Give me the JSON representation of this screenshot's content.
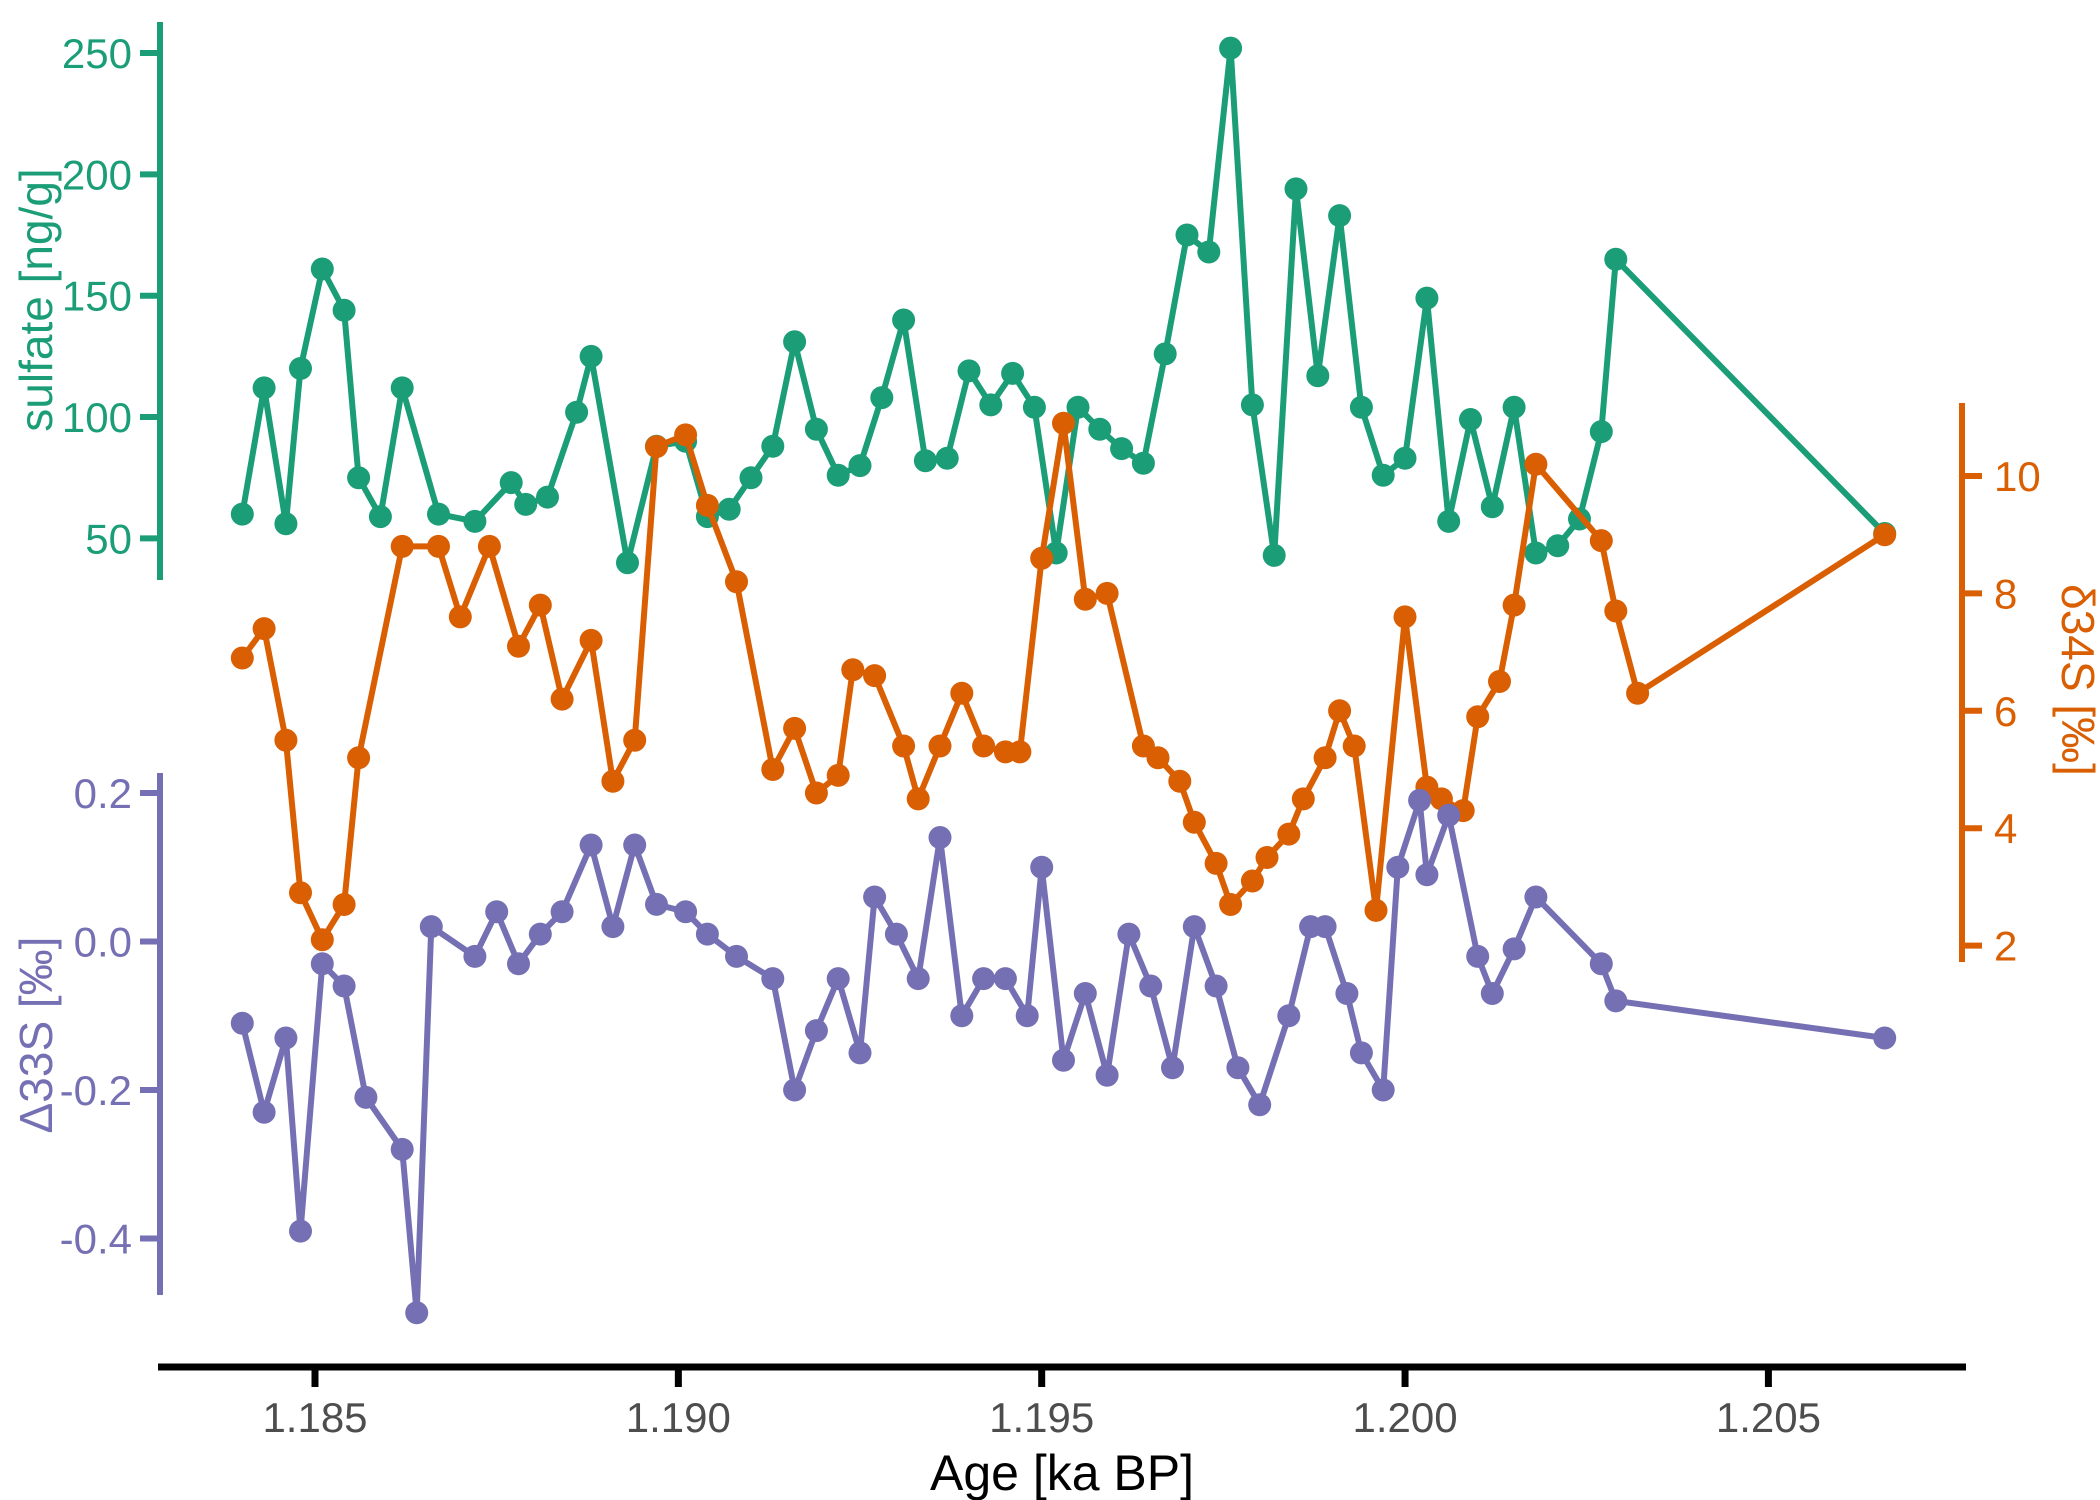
{
  "chart_data": {
    "type": "line",
    "title": "",
    "xlabel": "Age [ka BP]",
    "x_ticks": [
      1.185,
      1.19,
      1.195,
      1.2,
      1.205
    ],
    "x_tick_labels": [
      "1.185",
      "1.190",
      "1.195",
      "1.200",
      "1.205"
    ],
    "xlim": [
      1.1828,
      1.2078
    ],
    "grid": false,
    "legend": "none",
    "axes": [
      {
        "id": "sulfate",
        "side": "left-top",
        "label": "sulfate [ng/g]",
        "color": "#1b9e77",
        "ticks": [
          250,
          200,
          150,
          100,
          50
        ],
        "tick_labels": [
          "250",
          "200",
          "150",
          "100",
          "50"
        ],
        "range_px_note": "top left axis"
      },
      {
        "id": "d34s",
        "side": "right",
        "label": "δ34S [‰]",
        "color": "#d95f02",
        "ticks": [
          10,
          8,
          6,
          4,
          2
        ],
        "tick_labels": [
          "10",
          "8",
          "6",
          "4",
          "2"
        ]
      },
      {
        "id": "d33s",
        "side": "left-bottom",
        "label": "Δ33S [‰]",
        "color": "#7570b3",
        "ticks": [
          0.2,
          0.0,
          -0.2,
          -0.4
        ],
        "tick_labels": [
          "0.2",
          "0.0",
          "-0.2",
          "-0.4"
        ]
      }
    ],
    "series": [
      {
        "name": "sulfate",
        "axis": "sulfate",
        "color": "#1b9e77",
        "points": [
          [
            1.184,
            60
          ],
          [
            1.1843,
            112
          ],
          [
            1.1846,
            56
          ],
          [
            1.1848,
            120
          ],
          [
            1.1851,
            161
          ],
          [
            1.1854,
            144
          ],
          [
            1.1856,
            75
          ],
          [
            1.1859,
            59
          ],
          [
            1.1862,
            112
          ],
          [
            1.1867,
            60
          ],
          [
            1.1872,
            57
          ],
          [
            1.1877,
            73
          ],
          [
            1.1879,
            64
          ],
          [
            1.1882,
            67
          ],
          [
            1.1886,
            102
          ],
          [
            1.1888,
            125
          ],
          [
            1.1893,
            40
          ],
          [
            1.1897,
            88
          ],
          [
            1.1901,
            90
          ],
          [
            1.1904,
            59
          ],
          [
            1.1907,
            62
          ],
          [
            1.191,
            75
          ],
          [
            1.1913,
            88
          ],
          [
            1.1916,
            131
          ],
          [
            1.1919,
            95
          ],
          [
            1.1922,
            76
          ],
          [
            1.1925,
            80
          ],
          [
            1.1928,
            108
          ],
          [
            1.1931,
            140
          ],
          [
            1.1934,
            82
          ],
          [
            1.1937,
            83
          ],
          [
            1.194,
            119
          ],
          [
            1.1943,
            105
          ],
          [
            1.1946,
            118
          ],
          [
            1.1949,
            104
          ],
          [
            1.1952,
            44
          ],
          [
            1.1955,
            104
          ],
          [
            1.1958,
            95
          ],
          [
            1.1961,
            87
          ],
          [
            1.1964,
            81
          ],
          [
            1.1967,
            126
          ],
          [
            1.197,
            175
          ],
          [
            1.1973,
            168
          ],
          [
            1.1976,
            252
          ],
          [
            1.1979,
            105
          ],
          [
            1.1982,
            43
          ],
          [
            1.1985,
            194
          ],
          [
            1.1988,
            117
          ],
          [
            1.1991,
            183
          ],
          [
            1.1994,
            104
          ],
          [
            1.1997,
            76
          ],
          [
            1.2,
            83
          ],
          [
            1.2003,
            149
          ],
          [
            1.2006,
            57
          ],
          [
            1.2009,
            99
          ],
          [
            1.2012,
            63
          ],
          [
            1.2015,
            104
          ],
          [
            1.2018,
            44
          ],
          [
            1.2021,
            47
          ],
          [
            1.2024,
            58
          ],
          [
            1.2027,
            94
          ],
          [
            1.2029,
            165
          ],
          [
            1.2066,
            52
          ]
        ]
      },
      {
        "name": "d34S",
        "axis": "d34s",
        "color": "#d95f02",
        "points": [
          [
            1.184,
            6.9
          ],
          [
            1.1843,
            7.4
          ],
          [
            1.1846,
            5.5
          ],
          [
            1.1848,
            2.9
          ],
          [
            1.1851,
            2.1
          ],
          [
            1.1854,
            2.7
          ],
          [
            1.1856,
            5.2
          ],
          [
            1.1862,
            8.8
          ],
          [
            1.1867,
            8.8
          ],
          [
            1.187,
            7.6
          ],
          [
            1.1874,
            8.8
          ],
          [
            1.1878,
            7.1
          ],
          [
            1.1881,
            7.8
          ],
          [
            1.1884,
            6.2
          ],
          [
            1.1888,
            7.2
          ],
          [
            1.1891,
            4.8
          ],
          [
            1.1894,
            5.5
          ],
          [
            1.1897,
            10.5
          ],
          [
            1.1901,
            10.7
          ],
          [
            1.1904,
            9.5
          ],
          [
            1.1908,
            8.2
          ],
          [
            1.1913,
            5.0
          ],
          [
            1.1916,
            5.7
          ],
          [
            1.1919,
            4.6
          ],
          [
            1.1922,
            4.9
          ],
          [
            1.1924,
            6.7
          ],
          [
            1.1927,
            6.6
          ],
          [
            1.1931,
            5.4
          ],
          [
            1.1933,
            4.5
          ],
          [
            1.1936,
            5.4
          ],
          [
            1.1939,
            6.3
          ],
          [
            1.1942,
            5.4
          ],
          [
            1.1945,
            5.3
          ],
          [
            1.1947,
            5.3
          ],
          [
            1.195,
            8.6
          ],
          [
            1.1953,
            10.9
          ],
          [
            1.1956,
            7.9
          ],
          [
            1.1959,
            8.0
          ],
          [
            1.1964,
            5.4
          ],
          [
            1.1966,
            5.2
          ],
          [
            1.1969,
            4.8
          ],
          [
            1.1971,
            4.1
          ],
          [
            1.1974,
            3.4
          ],
          [
            1.1976,
            2.7
          ],
          [
            1.1979,
            3.1
          ],
          [
            1.1981,
            3.5
          ],
          [
            1.1984,
            3.9
          ],
          [
            1.1986,
            4.5
          ],
          [
            1.1989,
            5.2
          ],
          [
            1.1991,
            6.0
          ],
          [
            1.1993,
            5.4
          ],
          [
            1.1996,
            2.6
          ],
          [
            1.2,
            7.6
          ],
          [
            1.2003,
            4.7
          ],
          [
            1.2005,
            4.5
          ],
          [
            1.2008,
            4.3
          ],
          [
            1.201,
            5.9
          ],
          [
            1.2013,
            6.5
          ],
          [
            1.2015,
            7.8
          ],
          [
            1.2018,
            10.2
          ],
          [
            1.2027,
            8.9
          ],
          [
            1.2029,
            7.7
          ],
          [
            1.2032,
            6.3
          ],
          [
            1.2066,
            9.0
          ]
        ]
      },
      {
        "name": "d33S",
        "axis": "d33s",
        "color": "#7570b3",
        "points": [
          [
            1.184,
            -0.11
          ],
          [
            1.1843,
            -0.23
          ],
          [
            1.1846,
            -0.13
          ],
          [
            1.1848,
            -0.39
          ],
          [
            1.1851,
            -0.03
          ],
          [
            1.1854,
            -0.06
          ],
          [
            1.1857,
            -0.21
          ],
          [
            1.1862,
            -0.28
          ],
          [
            1.1864,
            -0.5
          ],
          [
            1.1866,
            0.02
          ],
          [
            1.1872,
            -0.02
          ],
          [
            1.1875,
            0.04
          ],
          [
            1.1878,
            -0.03
          ],
          [
            1.1881,
            0.01
          ],
          [
            1.1884,
            0.04
          ],
          [
            1.1888,
            0.13
          ],
          [
            1.1891,
            0.02
          ],
          [
            1.1894,
            0.13
          ],
          [
            1.1897,
            0.05
          ],
          [
            1.1901,
            0.04
          ],
          [
            1.1904,
            0.01
          ],
          [
            1.1908,
            -0.02
          ],
          [
            1.1913,
            -0.05
          ],
          [
            1.1916,
            -0.2
          ],
          [
            1.1919,
            -0.12
          ],
          [
            1.1922,
            -0.05
          ],
          [
            1.1925,
            -0.15
          ],
          [
            1.1927,
            0.06
          ],
          [
            1.193,
            0.01
          ],
          [
            1.1933,
            -0.05
          ],
          [
            1.1936,
            0.14
          ],
          [
            1.1939,
            -0.1
          ],
          [
            1.1942,
            -0.05
          ],
          [
            1.1945,
            -0.05
          ],
          [
            1.1948,
            -0.1
          ],
          [
            1.195,
            0.1
          ],
          [
            1.1953,
            -0.16
          ],
          [
            1.1956,
            -0.07
          ],
          [
            1.1959,
            -0.18
          ],
          [
            1.1962,
            0.01
          ],
          [
            1.1965,
            -0.06
          ],
          [
            1.1968,
            -0.17
          ],
          [
            1.1971,
            0.02
          ],
          [
            1.1974,
            -0.06
          ],
          [
            1.1977,
            -0.17
          ],
          [
            1.198,
            -0.22
          ],
          [
            1.1984,
            -0.1
          ],
          [
            1.1987,
            0.02
          ],
          [
            1.1989,
            0.02
          ],
          [
            1.1992,
            -0.07
          ],
          [
            1.1994,
            -0.15
          ],
          [
            1.1997,
            -0.2
          ],
          [
            1.1999,
            0.1
          ],
          [
            1.2002,
            0.19
          ],
          [
            1.2003,
            0.09
          ],
          [
            1.2006,
            0.17
          ],
          [
            1.201,
            -0.02
          ],
          [
            1.2012,
            -0.07
          ],
          [
            1.2015,
            -0.01
          ],
          [
            1.2018,
            0.06
          ],
          [
            1.2027,
            -0.03
          ],
          [
            1.2029,
            -0.08
          ],
          [
            1.2066,
            -0.13
          ]
        ]
      }
    ]
  }
}
